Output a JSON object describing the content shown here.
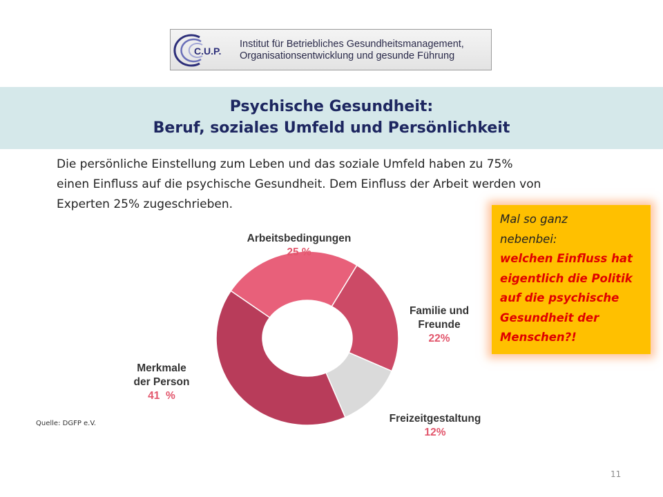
{
  "logo": {
    "brand": "C.U.P.",
    "line1": "Institut für Betriebliches Gesundheitsmanagement,",
    "line2": "Organisationsentwicklung und gesunde Führung"
  },
  "title": {
    "line1": "Psychische Gesundheit:",
    "line2": "Beruf, soziales Umfeld und Persönlichkeit"
  },
  "intro": {
    "line1": "Die persönliche Einstellung zum Leben und das soziale Umfeld haben zu 75%",
    "line2": "einen Einfluss auf die psychische Gesundheit. Dem Einfluss der Arbeit werden von",
    "line3": "Experten 25% zugeschrieben."
  },
  "callout": {
    "line1": "Mal so ganz",
    "line2": "nebenbei:",
    "line3": "welchen Einfluss hat",
    "line4": "eigentlich die Politik",
    "line5": "auf die psychische",
    "line6": "Gesundheit der",
    "line7": "Menschen?!"
  },
  "chart_data": {
    "type": "pie",
    "variant": "donut",
    "segments": [
      {
        "name_lines": [
          "Arbeitsbedingungen"
        ],
        "value_label": "25 %",
        "value": 25,
        "color": "#e8607a"
      },
      {
        "name_lines": [
          "Familie und",
          "Freunde"
        ],
        "value_label": "22%",
        "value": 22,
        "color": "#cc4a66"
      },
      {
        "name_lines": [
          "Freizeitgestaltung"
        ],
        "value_label": "12%",
        "value": 12,
        "color": "#dadada"
      },
      {
        "name_lines": [
          "Merkmale",
          "der Person"
        ],
        "value_label": "41  %",
        "value": 41,
        "color": "#b83c5a"
      }
    ]
  },
  "source": "Quelle: DGFP e.V.",
  "page_number": "11",
  "colors": {
    "title_band": "#d5e8ea",
    "title_text": "#1d2660",
    "callout_bg": "#ffc000",
    "callout_emphasis": "#e00000",
    "value_label": "#e2566c"
  }
}
